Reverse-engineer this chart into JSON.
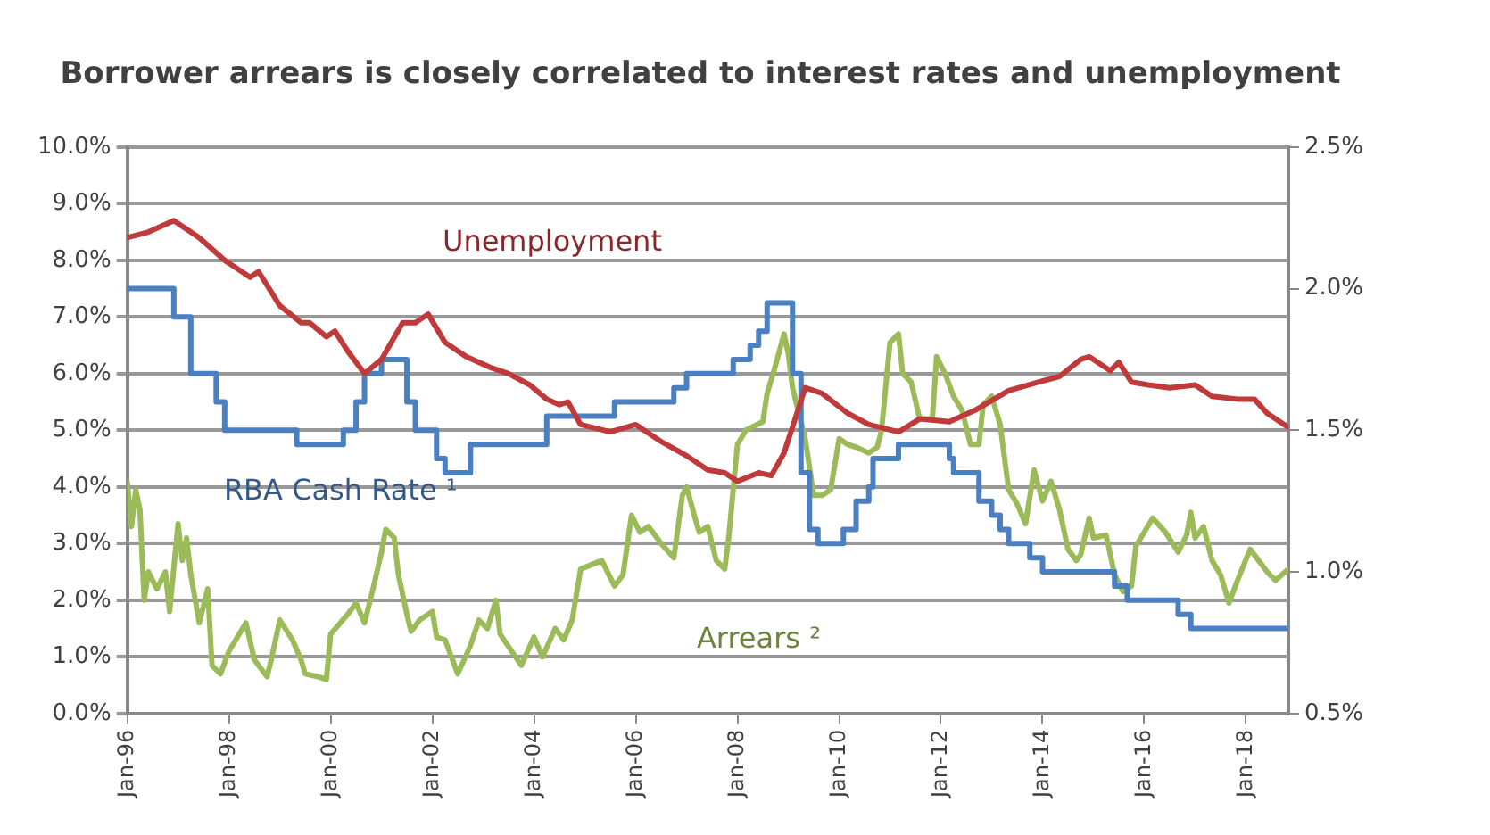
{
  "chart_data": {
    "type": "line",
    "title": "Borrower arrears is closely correlated to interest rates and unemployment",
    "xlim": [
      "1996-01",
      "2018-11"
    ],
    "xticks": [
      {
        "value": "1996-01",
        "label": "Jan-96"
      },
      {
        "value": "1998-01",
        "label": "Jan-98"
      },
      {
        "value": "2000-01",
        "label": "Jan-00"
      },
      {
        "value": "2002-01",
        "label": "Jan-02"
      },
      {
        "value": "2004-01",
        "label": "Jan-04"
      },
      {
        "value": "2006-01",
        "label": "Jan-06"
      },
      {
        "value": "2008-01",
        "label": "Jan-08"
      },
      {
        "value": "2010-01",
        "label": "Jan-10"
      },
      {
        "value": "2012-01",
        "label": "Jan-12"
      },
      {
        "value": "2014-01",
        "label": "Jan-14"
      },
      {
        "value": "2016-01",
        "label": "Jan-16"
      },
      {
        "value": "2018-01",
        "label": "Jan-18"
      }
    ],
    "ylim": [
      0,
      10
    ],
    "yticks": [
      {
        "value": 0,
        "label": "0.0%"
      },
      {
        "value": 1,
        "label": "1.0%"
      },
      {
        "value": 2,
        "label": "2.0%"
      },
      {
        "value": 3,
        "label": "3.0%"
      },
      {
        "value": 4,
        "label": "4.0%"
      },
      {
        "value": 5,
        "label": "5.0%"
      },
      {
        "value": 6,
        "label": "6.0%"
      },
      {
        "value": 7,
        "label": "7.0%"
      },
      {
        "value": 8,
        "label": "8.0%"
      },
      {
        "value": 9,
        "label": "9.0%"
      },
      {
        "value": 10,
        "label": "10.0%"
      }
    ],
    "y2lim": [
      0.5,
      2.5
    ],
    "y2ticks": [
      {
        "value": 0.5,
        "label": "0.5%"
      },
      {
        "value": 1.0,
        "label": "1.0%"
      },
      {
        "value": 1.5,
        "label": "1.5%"
      },
      {
        "value": 2.0,
        "label": "2.0%"
      },
      {
        "value": 2.5,
        "label": "2.5%"
      }
    ],
    "grid": "y",
    "legend": false,
    "marker": "none",
    "series": [
      {
        "name": "Unemployment",
        "color": "#c0393b",
        "x": [
          "1996-01",
          "1996-06",
          "1996-12",
          "1997-06",
          "1997-12",
          "1998-06",
          "1998-08",
          "1999-01",
          "1999-06",
          "1999-08",
          "1999-12",
          "2000-02",
          "2000-05",
          "2000-09",
          "2001-01",
          "2001-06",
          "2001-09",
          "2001-12",
          "2002-04",
          "2002-09",
          "2003-03",
          "2003-07",
          "2003-12",
          "2004-04",
          "2004-07",
          "2004-09",
          "2004-12",
          "2005-07",
          "2006-01",
          "2006-07",
          "2007-01",
          "2007-06",
          "2007-10",
          "2008-01",
          "2008-06",
          "2008-09",
          "2008-12",
          "2009-05",
          "2009-09",
          "2010-03",
          "2010-08",
          "2011-03",
          "2011-08",
          "2012-03",
          "2012-09",
          "2013-05",
          "2013-12",
          "2014-05",
          "2014-10",
          "2014-12",
          "2015-05",
          "2015-07",
          "2015-10",
          "2016-02",
          "2016-07",
          "2017-01",
          "2017-05",
          "2017-11",
          "2018-03",
          "2018-06",
          "2018-11"
        ],
        "values": [
          8.4,
          8.5,
          8.7,
          8.4,
          8.0,
          7.7,
          7.8,
          7.2,
          6.9,
          6.9,
          6.65,
          6.75,
          6.4,
          6.0,
          6.25,
          6.9,
          6.9,
          7.05,
          6.55,
          6.3,
          6.1,
          6.0,
          5.8,
          5.55,
          5.45,
          5.5,
          5.1,
          4.97,
          5.1,
          4.8,
          4.55,
          4.3,
          4.25,
          4.1,
          4.25,
          4.2,
          4.6,
          5.75,
          5.65,
          5.3,
          5.1,
          4.97,
          5.2,
          5.15,
          5.35,
          5.7,
          5.85,
          5.95,
          6.25,
          6.3,
          6.05,
          6.2,
          5.85,
          5.8,
          5.75,
          5.8,
          5.6,
          5.55,
          5.55,
          5.3,
          5.05
        ]
      },
      {
        "name": "RBA Cash Rate ¹",
        "type": "step",
        "color": "#4a7fc1",
        "x": [
          "1996-01",
          "1996-12",
          "1997-04",
          "1997-10",
          "1997-12",
          "1999-05",
          "2000-04",
          "2000-07",
          "2000-09",
          "2001-01",
          "2001-07",
          "2001-09",
          "2002-02",
          "2002-04",
          "2002-10",
          "2004-04",
          "2005-08",
          "2006-10",
          "2007-01",
          "2007-12",
          "2008-04",
          "2008-06",
          "2008-08",
          "2009-02",
          "2009-04",
          "2009-06",
          "2009-08",
          "2010-02",
          "2010-05",
          "2010-08",
          "2010-09",
          "2011-03",
          "2012-03",
          "2012-04",
          "2012-10",
          "2013-01",
          "2013-03",
          "2013-05",
          "2013-10",
          "2014-01",
          "2015-06",
          "2015-09",
          "2016-09",
          "2016-12",
          "2018-11"
        ],
        "values": [
          7.5,
          7.0,
          6.0,
          5.5,
          5.0,
          4.75,
          5.0,
          5.5,
          6.0,
          6.25,
          5.5,
          5.0,
          4.5,
          4.25,
          4.75,
          5.25,
          5.5,
          5.75,
          6.0,
          6.25,
          6.5,
          6.75,
          7.25,
          6.0,
          4.25,
          3.25,
          3.0,
          3.25,
          3.75,
          4.0,
          4.5,
          4.75,
          4.5,
          4.25,
          3.75,
          3.5,
          3.25,
          3.0,
          2.75,
          2.5,
          2.25,
          2.0,
          1.75,
          1.5,
          1.5
        ]
      },
      {
        "name": "Arrears ²",
        "axis": "y2",
        "color": "#9bbb59",
        "x": [
          "1996-01",
          "1996-02",
          "1996-03",
          "1996-04",
          "1996-05",
          "1996-06",
          "1996-08",
          "1996-10",
          "1996-11",
          "1997-01",
          "1997-02",
          "1997-03",
          "1997-04",
          "1997-06",
          "1997-08",
          "1997-09",
          "1997-11",
          "1998-01",
          "1998-05",
          "1998-07",
          "1998-10",
          "1998-11",
          "1999-01",
          "1999-04",
          "1999-06",
          "1999-07",
          "1999-10",
          "1999-12",
          "2000-01",
          "2000-05",
          "2000-07",
          "2000-09",
          "2000-11",
          "2001-01",
          "2001-02",
          "2001-04",
          "2001-05",
          "2001-07",
          "2001-08",
          "2001-10",
          "2002-01",
          "2002-02",
          "2002-04",
          "2002-07",
          "2002-10",
          "2002-12",
          "2003-02",
          "2003-04",
          "2003-05",
          "2003-10",
          "2004-01",
          "2004-03",
          "2004-06",
          "2004-08",
          "2004-10",
          "2004-12",
          "2005-05",
          "2005-08",
          "2005-10",
          "2005-12",
          "2006-02",
          "2006-04",
          "2006-07",
          "2006-10",
          "2006-12",
          "2007-01",
          "2007-03",
          "2007-04",
          "2007-06",
          "2007-08",
          "2007-10",
          "2007-11",
          "2008-01",
          "2008-03",
          "2008-07",
          "2008-08",
          "2008-10",
          "2008-12",
          "2009-01",
          "2009-02",
          "2009-05",
          "2009-07",
          "2009-09",
          "2009-11",
          "2010-01",
          "2010-03",
          "2010-05",
          "2010-08",
          "2010-10",
          "2010-11",
          "2011-01",
          "2011-03",
          "2011-04",
          "2011-06",
          "2011-08",
          "2011-11",
          "2011-12",
          "2012-02",
          "2012-04",
          "2012-06",
          "2012-08",
          "2012-10",
          "2012-11",
          "2013-01",
          "2013-03",
          "2013-05",
          "2013-07",
          "2013-09",
          "2013-11",
          "2014-01",
          "2014-03",
          "2014-05",
          "2014-07",
          "2014-09",
          "2014-10",
          "2014-12",
          "2015-01",
          "2015-04",
          "2015-06",
          "2015-08",
          "2015-10",
          "2015-11",
          "2016-03",
          "2016-06",
          "2016-09",
          "2016-11",
          "2016-12",
          "2017-01",
          "2017-03",
          "2017-05",
          "2017-07",
          "2017-09",
          "2017-11",
          "2018-02",
          "2018-04",
          "2018-06",
          "2018-08",
          "2018-11"
        ],
        "values": [
          1.32,
          1.16,
          1.29,
          1.22,
          0.9,
          1.0,
          0.94,
          1.0,
          0.86,
          1.17,
          1.04,
          1.12,
          0.99,
          0.82,
          0.94,
          0.67,
          0.64,
          0.72,
          0.82,
          0.69,
          0.63,
          0.69,
          0.83,
          0.76,
          0.69,
          0.64,
          0.63,
          0.62,
          0.78,
          0.85,
          0.89,
          0.82,
          0.94,
          1.07,
          1.15,
          1.12,
          0.99,
          0.85,
          0.79,
          0.83,
          0.86,
          0.77,
          0.76,
          0.64,
          0.74,
          0.83,
          0.8,
          0.9,
          0.78,
          0.67,
          0.77,
          0.7,
          0.8,
          0.76,
          0.83,
          1.01,
          1.04,
          0.95,
          0.99,
          1.2,
          1.14,
          1.16,
          1.1,
          1.05,
          1.27,
          1.3,
          1.19,
          1.14,
          1.16,
          1.04,
          1.01,
          1.13,
          1.45,
          1.5,
          1.53,
          1.63,
          1.73,
          1.84,
          1.77,
          1.65,
          1.47,
          1.27,
          1.27,
          1.29,
          1.47,
          1.45,
          1.44,
          1.42,
          1.44,
          1.5,
          1.81,
          1.84,
          1.7,
          1.67,
          1.54,
          1.54,
          1.76,
          1.7,
          1.62,
          1.57,
          1.45,
          1.45,
          1.59,
          1.62,
          1.52,
          1.29,
          1.24,
          1.17,
          1.36,
          1.25,
          1.32,
          1.22,
          1.08,
          1.04,
          1.06,
          1.19,
          1.12,
          1.13,
          0.99,
          0.93,
          0.95,
          1.09,
          1.19,
          1.14,
          1.07,
          1.13,
          1.21,
          1.12,
          1.16,
          1.04,
          0.99,
          0.89,
          0.97,
          1.08,
          1.04,
          1.0,
          0.97,
          1.01
        ]
      }
    ]
  }
}
